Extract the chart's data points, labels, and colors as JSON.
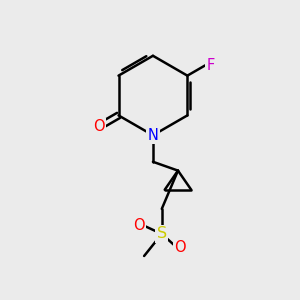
{
  "background_color": "#ebebeb",
  "bond_color": "#000000",
  "atom_colors": {
    "N": "#0000ff",
    "O": "#ff0000",
    "F": "#cc00cc",
    "S": "#cccc00",
    "C": "#000000"
  },
  "figsize": [
    3.0,
    3.0
  ],
  "dpi": 100
}
